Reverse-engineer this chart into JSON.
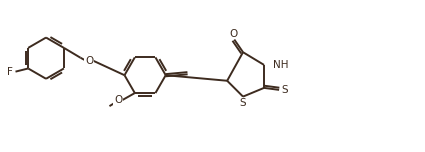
{
  "background": "#ffffff",
  "line_color": "#3d2b1f",
  "line_width": 1.4,
  "text_color": "#3d2b1f",
  "font_size": 7.5,
  "figsize": [
    4.25,
    1.52
  ],
  "dpi": 100,
  "xlim": [
    0,
    10.5
  ],
  "ylim": [
    0,
    3.8
  ]
}
